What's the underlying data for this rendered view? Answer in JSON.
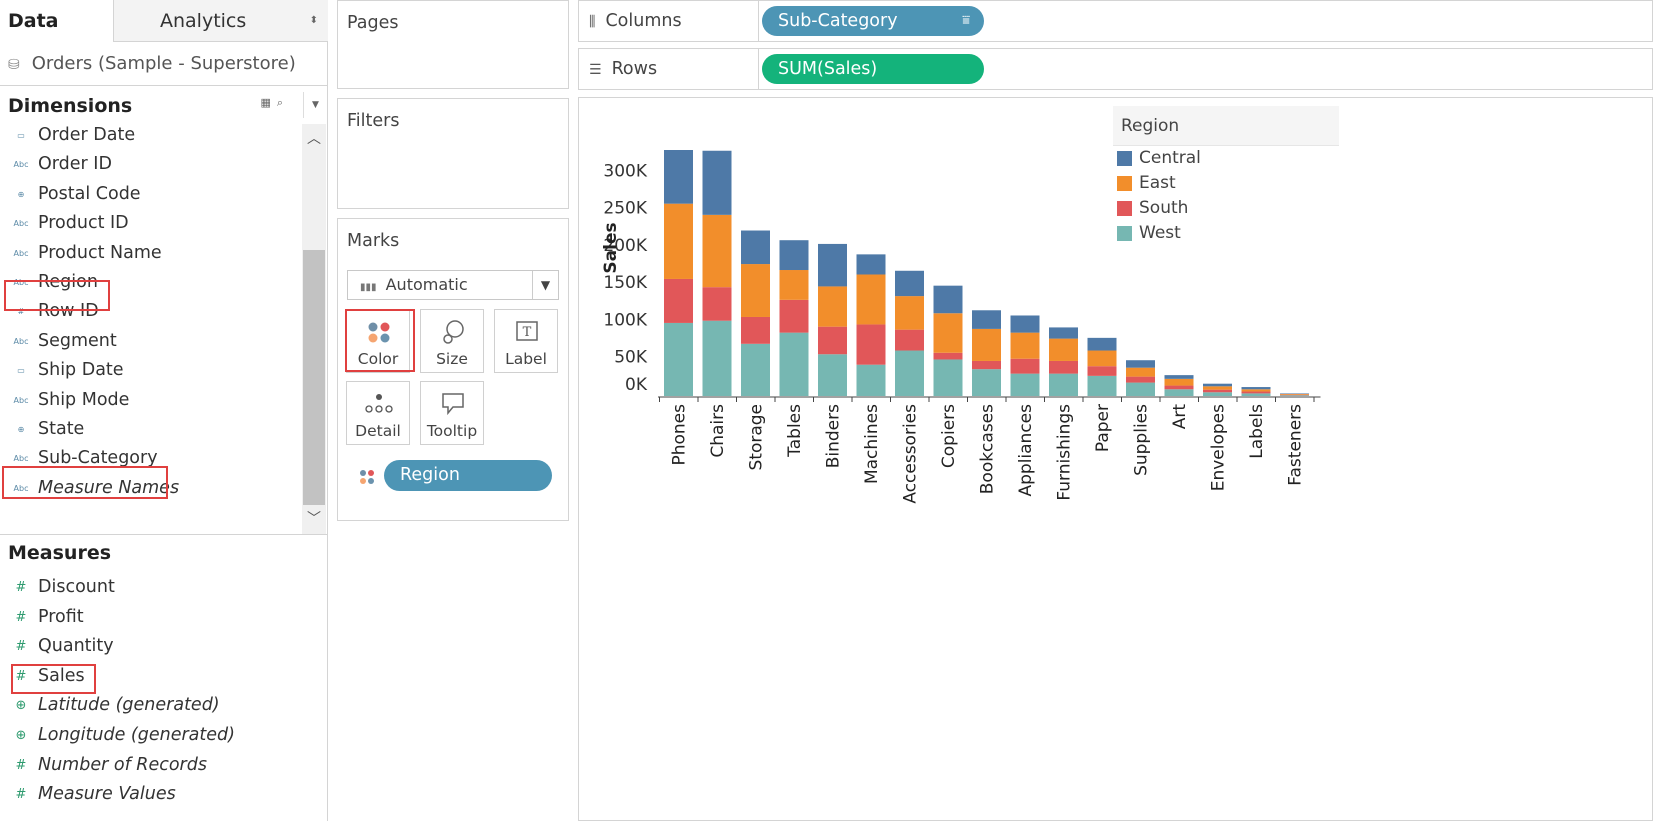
{
  "tabs": {
    "data": "Data",
    "analytics": "Analytics"
  },
  "datasource": "Orders (Sample - Superstore)",
  "dimensions": {
    "title": "Dimensions",
    "fields": [
      {
        "name": "Order Date",
        "type": "date"
      },
      {
        "name": "Order ID",
        "type": "string"
      },
      {
        "name": "Postal Code",
        "type": "geo"
      },
      {
        "name": "Product ID",
        "type": "string"
      },
      {
        "name": "Product Name",
        "type": "string"
      },
      {
        "name": "Region",
        "type": "string"
      },
      {
        "name": "Row ID",
        "type": "number"
      },
      {
        "name": "Segment",
        "type": "string"
      },
      {
        "name": "Ship Date",
        "type": "date"
      },
      {
        "name": "Ship Mode",
        "type": "string"
      },
      {
        "name": "State",
        "type": "geo"
      },
      {
        "name": "Sub-Category",
        "type": "string"
      },
      {
        "name": "Measure Names",
        "type": "string"
      }
    ]
  },
  "measures": {
    "title": "Measures",
    "fields": [
      {
        "name": "Discount",
        "type": "number"
      },
      {
        "name": "Profit",
        "type": "number"
      },
      {
        "name": "Quantity",
        "type": "number"
      },
      {
        "name": "Sales",
        "type": "number"
      },
      {
        "name": "Latitude (generated)",
        "type": "geo"
      },
      {
        "name": "Longitude (generated)",
        "type": "geo"
      },
      {
        "name": "Number of Records",
        "type": "number"
      },
      {
        "name": "Measure Values",
        "type": "number"
      }
    ]
  },
  "cards": {
    "pages": "Pages",
    "filters": "Filters",
    "marks": "Marks",
    "mark_type": "Automatic",
    "buttons": {
      "color": "Color",
      "size": "Size",
      "label": "Label",
      "detail": "Detail",
      "tooltip": "Tooltip"
    },
    "color_field": "Region"
  },
  "shelves": {
    "columns_label": "Columns",
    "columns_pill": "Sub-Category",
    "rows_label": "Rows",
    "rows_pill": "SUM(Sales)"
  },
  "colors": {
    "dim_pill": "#4d95b5",
    "measure_pill": "#14b37b",
    "highlight": "#e0403f",
    "Central": "#4e79a7",
    "East": "#f28e2b",
    "South": "#e15759",
    "West": "#76b7b2"
  },
  "chart_data": {
    "type": "bar",
    "stacked": true,
    "categories": [
      "Phones",
      "Chairs",
      "Storage",
      "Tables",
      "Binders",
      "Machines",
      "Accessories",
      "Copiers",
      "Bookcases",
      "Appliances",
      "Furnishings",
      "Paper",
      "Supplies",
      "Art",
      "Envelopes",
      "Labels",
      "Fasteners"
    ],
    "series": [
      {
        "name": "West",
        "values": [
          98000,
          101000,
          70000,
          85000,
          56000,
          42000,
          61000,
          49000,
          36000,
          30000,
          30000,
          27000,
          18000,
          9000,
          5000,
          3500,
          1000
        ]
      },
      {
        "name": "South",
        "values": [
          59000,
          45000,
          36000,
          44000,
          37000,
          54000,
          28000,
          9000,
          11000,
          20000,
          17000,
          13000,
          8000,
          5000,
          3500,
          2500,
          700
        ]
      },
      {
        "name": "East",
        "values": [
          101000,
          97000,
          71000,
          40000,
          54000,
          67000,
          45000,
          53000,
          43000,
          35000,
          30000,
          21000,
          12000,
          9000,
          4500,
          3000,
          1000
        ]
      },
      {
        "name": "Central",
        "values": [
          72000,
          86000,
          45000,
          40000,
          57000,
          27000,
          34000,
          37000,
          25000,
          23000,
          15000,
          17000,
          10000,
          5000,
          3500,
          3000,
          700
        ]
      }
    ],
    "ylabel": "Sales",
    "yticks": [
      "0K",
      "50K",
      "100K",
      "150K",
      "200K",
      "250K",
      "300K"
    ],
    "ylim": [
      0,
      330000
    ],
    "legend_title": "Region",
    "legend": [
      "Central",
      "East",
      "South",
      "West"
    ],
    "legend_position": "top-right"
  }
}
